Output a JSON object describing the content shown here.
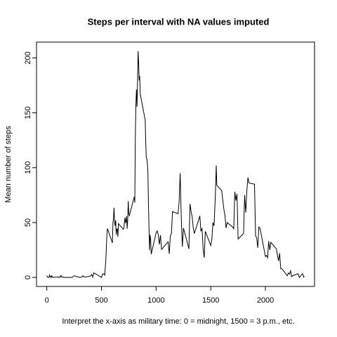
{
  "chart_data": {
    "type": "line",
    "title": "Steps per interval with NA values imputed",
    "xlabel": "Interpret the x-axis as military time: 0 = midnight, 1500 = 3 p.m., etc.",
    "ylabel": "Mean number of steps",
    "x": [
      0,
      5,
      10,
      15,
      20,
      25,
      30,
      35,
      40,
      45,
      50,
      55,
      100,
      105,
      110,
      115,
      120,
      125,
      130,
      135,
      140,
      145,
      150,
      155,
      200,
      230,
      250,
      300,
      310,
      320,
      330,
      340,
      350,
      400,
      410,
      420,
      430,
      440,
      450,
      500,
      510,
      520,
      530,
      540,
      550,
      555,
      600,
      605,
      610,
      615,
      620,
      625,
      630,
      635,
      640,
      645,
      650,
      655,
      700,
      705,
      710,
      715,
      720,
      725,
      730,
      735,
      740,
      745,
      750,
      755,
      800,
      805,
      810,
      815,
      820,
      825,
      830,
      835,
      840,
      845,
      850,
      855,
      900,
      905,
      910,
      915,
      920,
      925,
      930,
      935,
      940,
      945,
      950,
      955,
      1000,
      1010,
      1020,
      1030,
      1040,
      1050,
      1100,
      1110,
      1120,
      1130,
      1140,
      1150,
      1200,
      1210,
      1220,
      1230,
      1240,
      1250,
      1300,
      1310,
      1320,
      1330,
      1340,
      1350,
      1400,
      1410,
      1420,
      1430,
      1440,
      1450,
      1500,
      1510,
      1520,
      1530,
      1540,
      1545,
      1550,
      1555,
      1600,
      1610,
      1620,
      1630,
      1640,
      1650,
      1700,
      1710,
      1720,
      1730,
      1740,
      1750,
      1800,
      1810,
      1820,
      1830,
      1840,
      1850,
      1900,
      1910,
      1920,
      1930,
      1940,
      1950,
      2000,
      2010,
      2020,
      2030,
      2040,
      2050,
      2100,
      2110,
      2120,
      2130,
      2140,
      2150,
      2200,
      2210,
      2220,
      2230,
      2240,
      2250,
      2300,
      2310,
      2320,
      2330,
      2340,
      2350,
      2355
    ],
    "series": [
      {
        "name": "steps",
        "color": "#000000",
        "values": [
          1.7,
          0.3,
          0.1,
          0.2,
          0.1,
          2.1,
          0.5,
          0.9,
          0,
          1.5,
          0.4,
          0.1,
          0.4,
          0,
          0.2,
          0.3,
          0,
          1.1,
          1.8,
          0.2,
          0.2,
          0.4,
          0.3,
          0,
          0,
          0,
          1.5,
          0,
          0,
          0.2,
          1.6,
          0.5,
          0.2,
          1.2,
          2.6,
          0.3,
          4.1,
          3.5,
          3.1,
          0,
          3,
          3.3,
          2.1,
          16,
          39.5,
          44.5,
          31.5,
          49.3,
          53.8,
          63.5,
          50,
          47,
          52,
          39,
          44,
          44.2,
          37,
          49,
          43.8,
          44.4,
          50.5,
          54.5,
          49.9,
          51,
          55.7,
          44.3,
          52.3,
          69.5,
          57.8,
          56.2,
          73.4,
          68.2,
          129.4,
          157.5,
          171.2,
          155.4,
          177.3,
          206.2,
          195.9,
          179.6,
          183.4,
          167,
          143.5,
          124,
          109.1,
          108.1,
          103.7,
          95.9,
          66.2,
          45.2,
          24.8,
          38.8,
          35,
          21.1,
          40.6,
          42.4,
          38.9,
          30,
          38.4,
          25.5,
          31.4,
          32.4,
          21.5,
          38,
          40,
          60,
          58,
          68,
          95,
          55,
          28,
          45,
          26,
          67,
          60,
          55,
          45,
          40,
          56,
          42,
          45,
          26,
          18,
          42,
          29,
          35,
          50,
          47,
          70,
          85,
          102,
          84,
          79,
          70,
          62,
          56,
          45,
          50,
          46,
          44,
          78,
          70,
          76,
          35,
          40,
          75,
          59,
          79,
          91,
          86,
          85,
          38,
          36,
          27,
          46,
          45,
          19,
          20,
          18,
          33,
          25,
          32,
          26,
          20,
          15,
          22,
          8,
          8,
          1.5,
          4,
          3,
          6,
          0.7,
          1.6,
          3.3,
          0,
          0.9,
          2.6,
          3.3,
          0.2,
          1.1
        ]
      }
    ],
    "xlim": [
      -94.2,
      2449.2
    ],
    "ylim": [
      -8.25,
      214.4
    ],
    "xticks": [
      0,
      500,
      1000,
      1500,
      2000
    ],
    "yticks": [
      0,
      50,
      100,
      150,
      200
    ],
    "grid": false
  }
}
